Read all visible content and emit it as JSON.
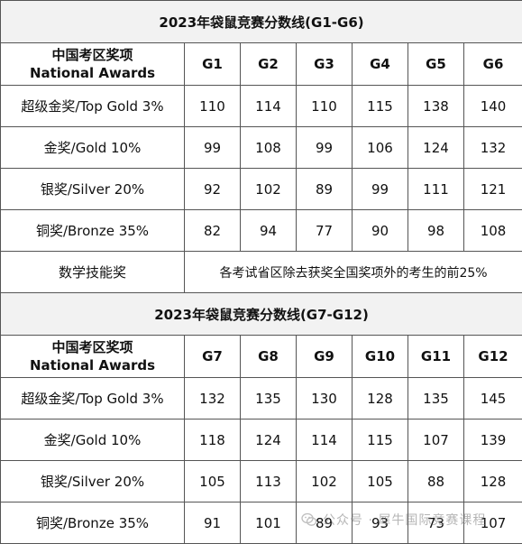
{
  "section1": {
    "title": "2023年袋鼠竞赛分数线(G1-G6)",
    "header": {
      "award_cn": "中国考区奖项",
      "award_en": "National Awards",
      "grades": [
        "G1",
        "G2",
        "G3",
        "G4",
        "G5",
        "G6"
      ]
    },
    "rows": [
      {
        "award": "超级金奖/Top Gold 3%",
        "values": [
          "110",
          "114",
          "110",
          "115",
          "138",
          "140"
        ]
      },
      {
        "award": "金奖/Gold 10%",
        "values": [
          "99",
          "108",
          "99",
          "106",
          "124",
          "132"
        ]
      },
      {
        "award": "银奖/Silver 20%",
        "values": [
          "92",
          "102",
          "89",
          "99",
          "111",
          "121"
        ]
      },
      {
        "award": "铜奖/Bronze 35%",
        "values": [
          "82",
          "94",
          "77",
          "90",
          "98",
          "108"
        ]
      }
    ],
    "skill_row": {
      "award": "数学技能奖",
      "description": "各考试省区除去获奖全国奖项外的考生的前25%"
    }
  },
  "section2": {
    "title": "2023年袋鼠竞赛分数线(G7-G12)",
    "header": {
      "award_cn": "中国考区奖项",
      "award_en": "National Awards",
      "grades": [
        "G7",
        "G8",
        "G9",
        "G10",
        "G11",
        "G12"
      ]
    },
    "rows": [
      {
        "award": "超级金奖/Top Gold 3%",
        "values": [
          "132",
          "135",
          "130",
          "128",
          "135",
          "145"
        ]
      },
      {
        "award": "金奖/Gold 10%",
        "values": [
          "118",
          "124",
          "114",
          "115",
          "107",
          "139"
        ]
      },
      {
        "award": "银奖/Silver 20%",
        "values": [
          "105",
          "113",
          "102",
          "105",
          "88",
          "128"
        ]
      },
      {
        "award": "铜奖/Bronze 35%",
        "values": [
          "91",
          "101",
          "89",
          "93",
          "73",
          "107"
        ]
      }
    ]
  },
  "watermark": {
    "text": "公众号 · 犀牛国际竞赛课程",
    "icon": "wechat-icon"
  }
}
